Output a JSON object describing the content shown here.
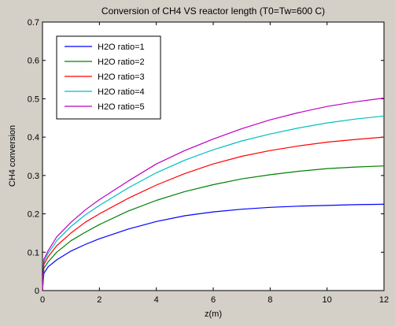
{
  "chart_data": {
    "type": "line",
    "title": "Conversion of CH4 VS reactor length (T0=Tw=600 C)",
    "xlabel": "z(m)",
    "ylabel": "CH4 conversion",
    "xlim": [
      0,
      12
    ],
    "ylim": [
      0,
      0.7
    ],
    "xticks": [
      0,
      2,
      4,
      6,
      8,
      10,
      12
    ],
    "yticks": [
      0,
      0.1,
      0.2,
      0.3,
      0.4,
      0.5,
      0.6,
      0.7
    ],
    "xtick_labels": [
      "0",
      "2",
      "4",
      "6",
      "8",
      "10",
      "12"
    ],
    "ytick_labels": [
      "0",
      "0.1",
      "0.2",
      "0.3",
      "0.4",
      "0.5",
      "0.6",
      "0.7"
    ],
    "grid": false,
    "legend_position": "top-left",
    "x": [
      0,
      0.05,
      0.2,
      0.5,
      1,
      1.5,
      2,
      3,
      4,
      5,
      6,
      7,
      8,
      9,
      10,
      11,
      12
    ],
    "series": [
      {
        "name": "H2O ratio=1",
        "color": "#0000ff",
        "values": [
          0.0,
          0.045,
          0.062,
          0.08,
          0.103,
          0.12,
          0.135,
          0.16,
          0.18,
          0.195,
          0.205,
          0.212,
          0.217,
          0.22,
          0.222,
          0.224,
          0.225
        ]
      },
      {
        "name": "H2O ratio=2",
        "color": "#008000",
        "values": [
          0.0,
          0.058,
          0.075,
          0.1,
          0.13,
          0.152,
          0.172,
          0.207,
          0.235,
          0.258,
          0.276,
          0.291,
          0.302,
          0.311,
          0.318,
          0.322,
          0.325
        ]
      },
      {
        "name": "H2O ratio=3",
        "color": "#ff0000",
        "values": [
          0.0,
          0.068,
          0.088,
          0.117,
          0.15,
          0.178,
          0.2,
          0.24,
          0.275,
          0.305,
          0.33,
          0.35,
          0.365,
          0.377,
          0.387,
          0.394,
          0.4
        ]
      },
      {
        "name": "H2O ratio=4",
        "color": "#00bfbf",
        "values": [
          0.0,
          0.075,
          0.097,
          0.13,
          0.167,
          0.197,
          0.222,
          0.267,
          0.307,
          0.34,
          0.367,
          0.39,
          0.408,
          0.424,
          0.437,
          0.447,
          0.455
        ]
      },
      {
        "name": "H2O ratio=5",
        "color": "#bf00bf",
        "values": [
          0.0,
          0.082,
          0.104,
          0.14,
          0.178,
          0.21,
          0.237,
          0.285,
          0.33,
          0.365,
          0.395,
          0.422,
          0.445,
          0.464,
          0.48,
          0.492,
          0.502
        ]
      }
    ]
  }
}
